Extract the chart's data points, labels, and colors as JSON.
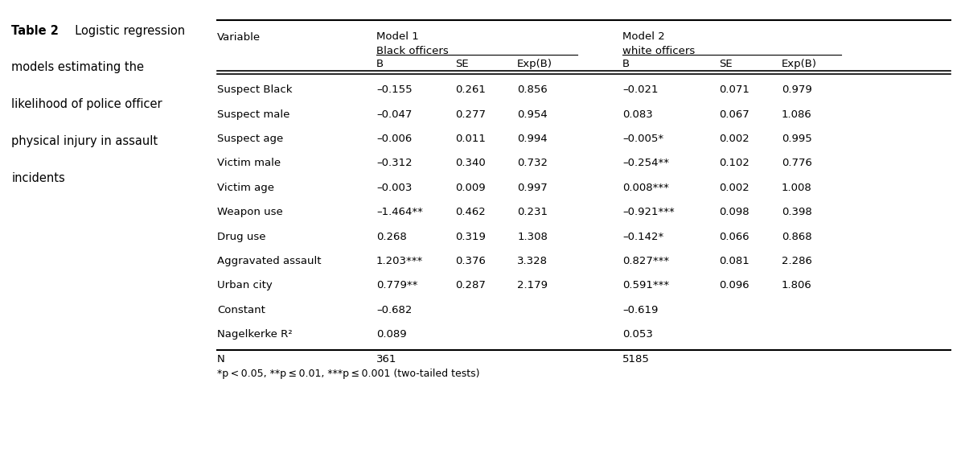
{
  "title_bold": "Table 2",
  "title_rest": "  Logistic regression",
  "caption_lines": [
    "models estimating the",
    "likelihood of police officer",
    "physical injury in assault",
    "incidents"
  ],
  "model1_line1": "Model 1",
  "model1_line2": "Black officers",
  "model2_line1": "Model 2",
  "model2_line2": "white officers",
  "subheaders": [
    "B",
    "SE",
    "Exp(B)",
    "B",
    "SE",
    "Exp(B)"
  ],
  "var_header": "Variable",
  "rows": [
    [
      "Suspect Black",
      "–0.155",
      "0.261",
      "0.856",
      "–0.021",
      "0.071",
      "0.979"
    ],
    [
      "Suspect male",
      "–0.047",
      "0.277",
      "0.954",
      "0.083",
      "0.067",
      "1.086"
    ],
    [
      "Suspect age",
      "–0.006",
      "0.011",
      "0.994",
      "–0.005*",
      "0.002",
      "0.995"
    ],
    [
      "Victim male",
      "–0.312",
      "0.340",
      "0.732",
      "–0.254**",
      "0.102",
      "0.776"
    ],
    [
      "Victim age",
      "–0.003",
      "0.009",
      "0.997",
      "0.008***",
      "0.002",
      "1.008"
    ],
    [
      "Weapon use",
      "–1.464**",
      "0.462",
      "0.231",
      "–0.921***",
      "0.098",
      "0.398"
    ],
    [
      "Drug use",
      "0.268",
      "0.319",
      "1.308",
      "–0.142*",
      "0.066",
      "0.868"
    ],
    [
      "Aggravated assault",
      "1.203***",
      "0.376",
      "3.328",
      "0.827***",
      "0.081",
      "2.286"
    ],
    [
      "Urban city",
      "0.779**",
      "0.287",
      "2.179",
      "0.591***",
      "0.096",
      "1.806"
    ],
    [
      "Constant",
      "–0.682",
      "",
      "",
      "–0.619",
      "",
      ""
    ],
    [
      "Nagelkerke R²",
      "0.089",
      "",
      "",
      "0.053",
      "",
      ""
    ],
    [
      "N",
      "361",
      "",
      "",
      "5185",
      "",
      ""
    ]
  ],
  "footnote": "*p < 0.05, **p ≤ 0.01, ***p ≤ 0.001 (two-tailed tests)",
  "bg_color": "#ffffff",
  "text_color": "#000000",
  "font_size": 9.5,
  "title_font_size": 10.5,
  "caption_font_size": 10.5
}
